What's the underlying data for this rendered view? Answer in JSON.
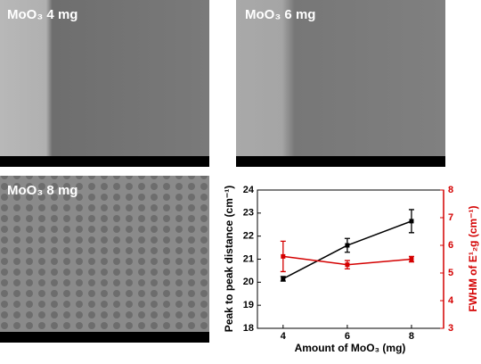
{
  "panels": [
    {
      "label": "MoO₃ 4 mg"
    },
    {
      "label": "MoO₃ 6 mg"
    },
    {
      "label": "MoO₃ 8 mg"
    }
  ],
  "chart_data": {
    "type": "line",
    "x_label": "Amount of MoO₃ (mg)",
    "y_label": "Peak to peak distance (cm⁻¹)",
    "y2_label": "FWHM of E¹₂g (cm⁻¹)",
    "x": [
      4,
      6,
      8
    ],
    "xlim": [
      3.2,
      9.0
    ],
    "xticks": [
      4,
      6,
      8
    ],
    "ylim": [
      18,
      24
    ],
    "yticks": [
      18,
      19,
      20,
      21,
      22,
      23,
      24
    ],
    "y2lim": [
      3,
      8
    ],
    "y2ticks": [
      3,
      4,
      5,
      6,
      7,
      8
    ],
    "series": [
      {
        "color": "#000000",
        "values": [
          20.15,
          21.6,
          22.65
        ],
        "errors": [
          0.1,
          0.3,
          0.5
        ]
      },
      {
        "color": "#d40000",
        "axis": "y2",
        "values": [
          5.6,
          5.3,
          5.5
        ],
        "errors": [
          0.55,
          0.15,
          0.1
        ]
      }
    ]
  }
}
